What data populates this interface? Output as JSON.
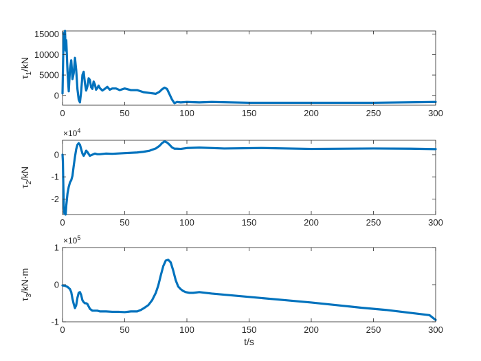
{
  "chart_data": [
    {
      "type": "line",
      "title": "",
      "ylabel": "τ1/kN",
      "ylabel_parts": {
        "sym": "τ",
        "sub": "1",
        "unit": "/kN"
      },
      "xlabel": "",
      "xlim": [
        0,
        300
      ],
      "ylim": [
        -2400,
        15800
      ],
      "grid": false,
      "xticks": [
        0,
        50,
        100,
        150,
        200,
        250,
        300
      ],
      "xtick_labels": [
        "0",
        "50",
        "100",
        "150",
        "200",
        "250",
        "300"
      ],
      "yticks": [
        0,
        5000,
        10000,
        15000
      ],
      "ytick_labels": [
        "0",
        "5000",
        "10000",
        "15000"
      ],
      "multiplier_label": "",
      "series": [
        {
          "color": "#0072BD",
          "x": [
            0,
            0.5,
            1,
            1.5,
            2,
            2.5,
            3,
            4,
            5,
            6,
            7,
            8,
            9,
            10,
            11,
            12,
            13,
            14,
            15,
            16,
            17,
            18,
            19,
            20,
            21,
            22,
            23,
            24,
            25,
            26,
            27,
            28,
            29,
            30,
            32,
            34,
            36,
            38,
            40,
            43,
            46,
            50,
            55,
            60,
            65,
            70,
            75,
            78,
            80,
            82,
            84,
            86,
            88,
            90,
            92,
            95,
            100,
            110,
            120,
            150,
            200,
            250,
            300
          ],
          "y": [
            500,
            9000,
            15300,
            12000,
            15800,
            11000,
            13500,
            6000,
            1000,
            6500,
            8600,
            4000,
            5500,
            9200,
            6200,
            1500,
            -1000,
            -1700,
            1000,
            5000,
            5800,
            3000,
            1200,
            2200,
            4200,
            3800,
            2000,
            1600,
            3400,
            2700,
            1400,
            1800,
            2400,
            1800,
            1200,
            1600,
            2100,
            1400,
            1700,
            1700,
            1300,
            1700,
            1300,
            1300,
            800,
            600,
            400,
            900,
            1500,
            1900,
            1600,
            300,
            -1000,
            -1900,
            -1600,
            -1700,
            -1600,
            -1700,
            -1600,
            -1800,
            -1800,
            -1800,
            -1600
          ]
        }
      ]
    },
    {
      "type": "line",
      "title": "",
      "ylabel": "τ2/kN",
      "ylabel_parts": {
        "sym": "τ",
        "sub": "2",
        "unit": "/kN"
      },
      "xlabel": "",
      "xlim": [
        0,
        300
      ],
      "ylim": [
        -2.7,
        0.65
      ],
      "grid": false,
      "xticks": [
        0,
        50,
        100,
        150,
        200,
        250,
        300
      ],
      "xtick_labels": [
        "0",
        "50",
        "100",
        "150",
        "200",
        "250",
        "300"
      ],
      "yticks": [
        -2,
        -1,
        0
      ],
      "ytick_labels": [
        "-2",
        "-1",
        "0"
      ],
      "multiplier_label": "×10",
      "multiplier_exp": "4",
      "series": [
        {
          "color": "#0072BD",
          "x": [
            0,
            0.3,
            0.6,
            1,
            1.5,
            2,
            2.5,
            3,
            4,
            5,
            6,
            7,
            8,
            9,
            10,
            11,
            12,
            13,
            14,
            15,
            16,
            17,
            18,
            19,
            20,
            22,
            24,
            26,
            28,
            30,
            35,
            40,
            50,
            60,
            65,
            70,
            75,
            78,
            80,
            82,
            84,
            86,
            88,
            90,
            92,
            95,
            100,
            110,
            130,
            160,
            200,
            250,
            280,
            300
          ],
          "y": [
            0.0,
            -0.3,
            -1.3,
            -2.3,
            -2.65,
            -2.4,
            -2.7,
            -2.3,
            -1.75,
            -1.45,
            -1.25,
            -1.15,
            -0.95,
            -0.5,
            -0.1,
            0.25,
            0.45,
            0.52,
            0.45,
            0.25,
            0.05,
            -0.05,
            0.05,
            0.18,
            0.12,
            -0.05,
            0.0,
            0.05,
            0.02,
            0.02,
            0.05,
            0.04,
            0.07,
            0.1,
            0.13,
            0.18,
            0.28,
            0.4,
            0.52,
            0.6,
            0.55,
            0.45,
            0.33,
            0.27,
            0.27,
            0.26,
            0.3,
            0.32,
            0.28,
            0.3,
            0.26,
            0.28,
            0.27,
            0.25
          ]
        }
      ]
    },
    {
      "type": "line",
      "title": "",
      "ylabel": "τ3/kN·m",
      "ylabel_parts": {
        "sym": "τ",
        "sub": "3",
        "unit": "/kN·m"
      },
      "xlabel": "t/s",
      "xlim": [
        0,
        300
      ],
      "ylim": [
        -1,
        1
      ],
      "grid": false,
      "xticks": [
        0,
        50,
        100,
        150,
        200,
        250,
        300
      ],
      "xtick_labels": [
        "0",
        "50",
        "100",
        "150",
        "200",
        "250",
        "300"
      ],
      "yticks": [
        -1,
        0,
        1
      ],
      "ytick_labels": [
        "-1",
        "0",
        "1"
      ],
      "multiplier_label": "×10",
      "multiplier_exp": "5",
      "series": [
        {
          "color": "#0072BD",
          "x": [
            0,
            2,
            4,
            6,
            7,
            8,
            9,
            10,
            11,
            12,
            13,
            14,
            15,
            16,
            17,
            18,
            19,
            20,
            22,
            24,
            26,
            28,
            30,
            35,
            40,
            45,
            50,
            55,
            60,
            63,
            66,
            69,
            72,
            75,
            77,
            79,
            81,
            83,
            85,
            87,
            89,
            91,
            93,
            95,
            97,
            99,
            102,
            105,
            110,
            120,
            140,
            160,
            180,
            200,
            220,
            240,
            260,
            280,
            295,
            300
          ],
          "y": [
            -0.02,
            -0.03,
            -0.06,
            -0.12,
            -0.2,
            -0.38,
            -0.52,
            -0.63,
            -0.55,
            -0.35,
            -0.22,
            -0.2,
            -0.28,
            -0.42,
            -0.47,
            -0.5,
            -0.5,
            -0.52,
            -0.65,
            -0.7,
            -0.7,
            -0.7,
            -0.72,
            -0.72,
            -0.73,
            -0.73,
            -0.74,
            -0.72,
            -0.72,
            -0.68,
            -0.62,
            -0.55,
            -0.42,
            -0.22,
            -0.02,
            0.25,
            0.5,
            0.65,
            0.67,
            0.6,
            0.38,
            0.12,
            -0.05,
            -0.12,
            -0.17,
            -0.2,
            -0.22,
            -0.22,
            -0.2,
            -0.24,
            -0.3,
            -0.36,
            -0.42,
            -0.48,
            -0.55,
            -0.62,
            -0.68,
            -0.76,
            -0.82,
            -0.95
          ]
        }
      ]
    }
  ]
}
